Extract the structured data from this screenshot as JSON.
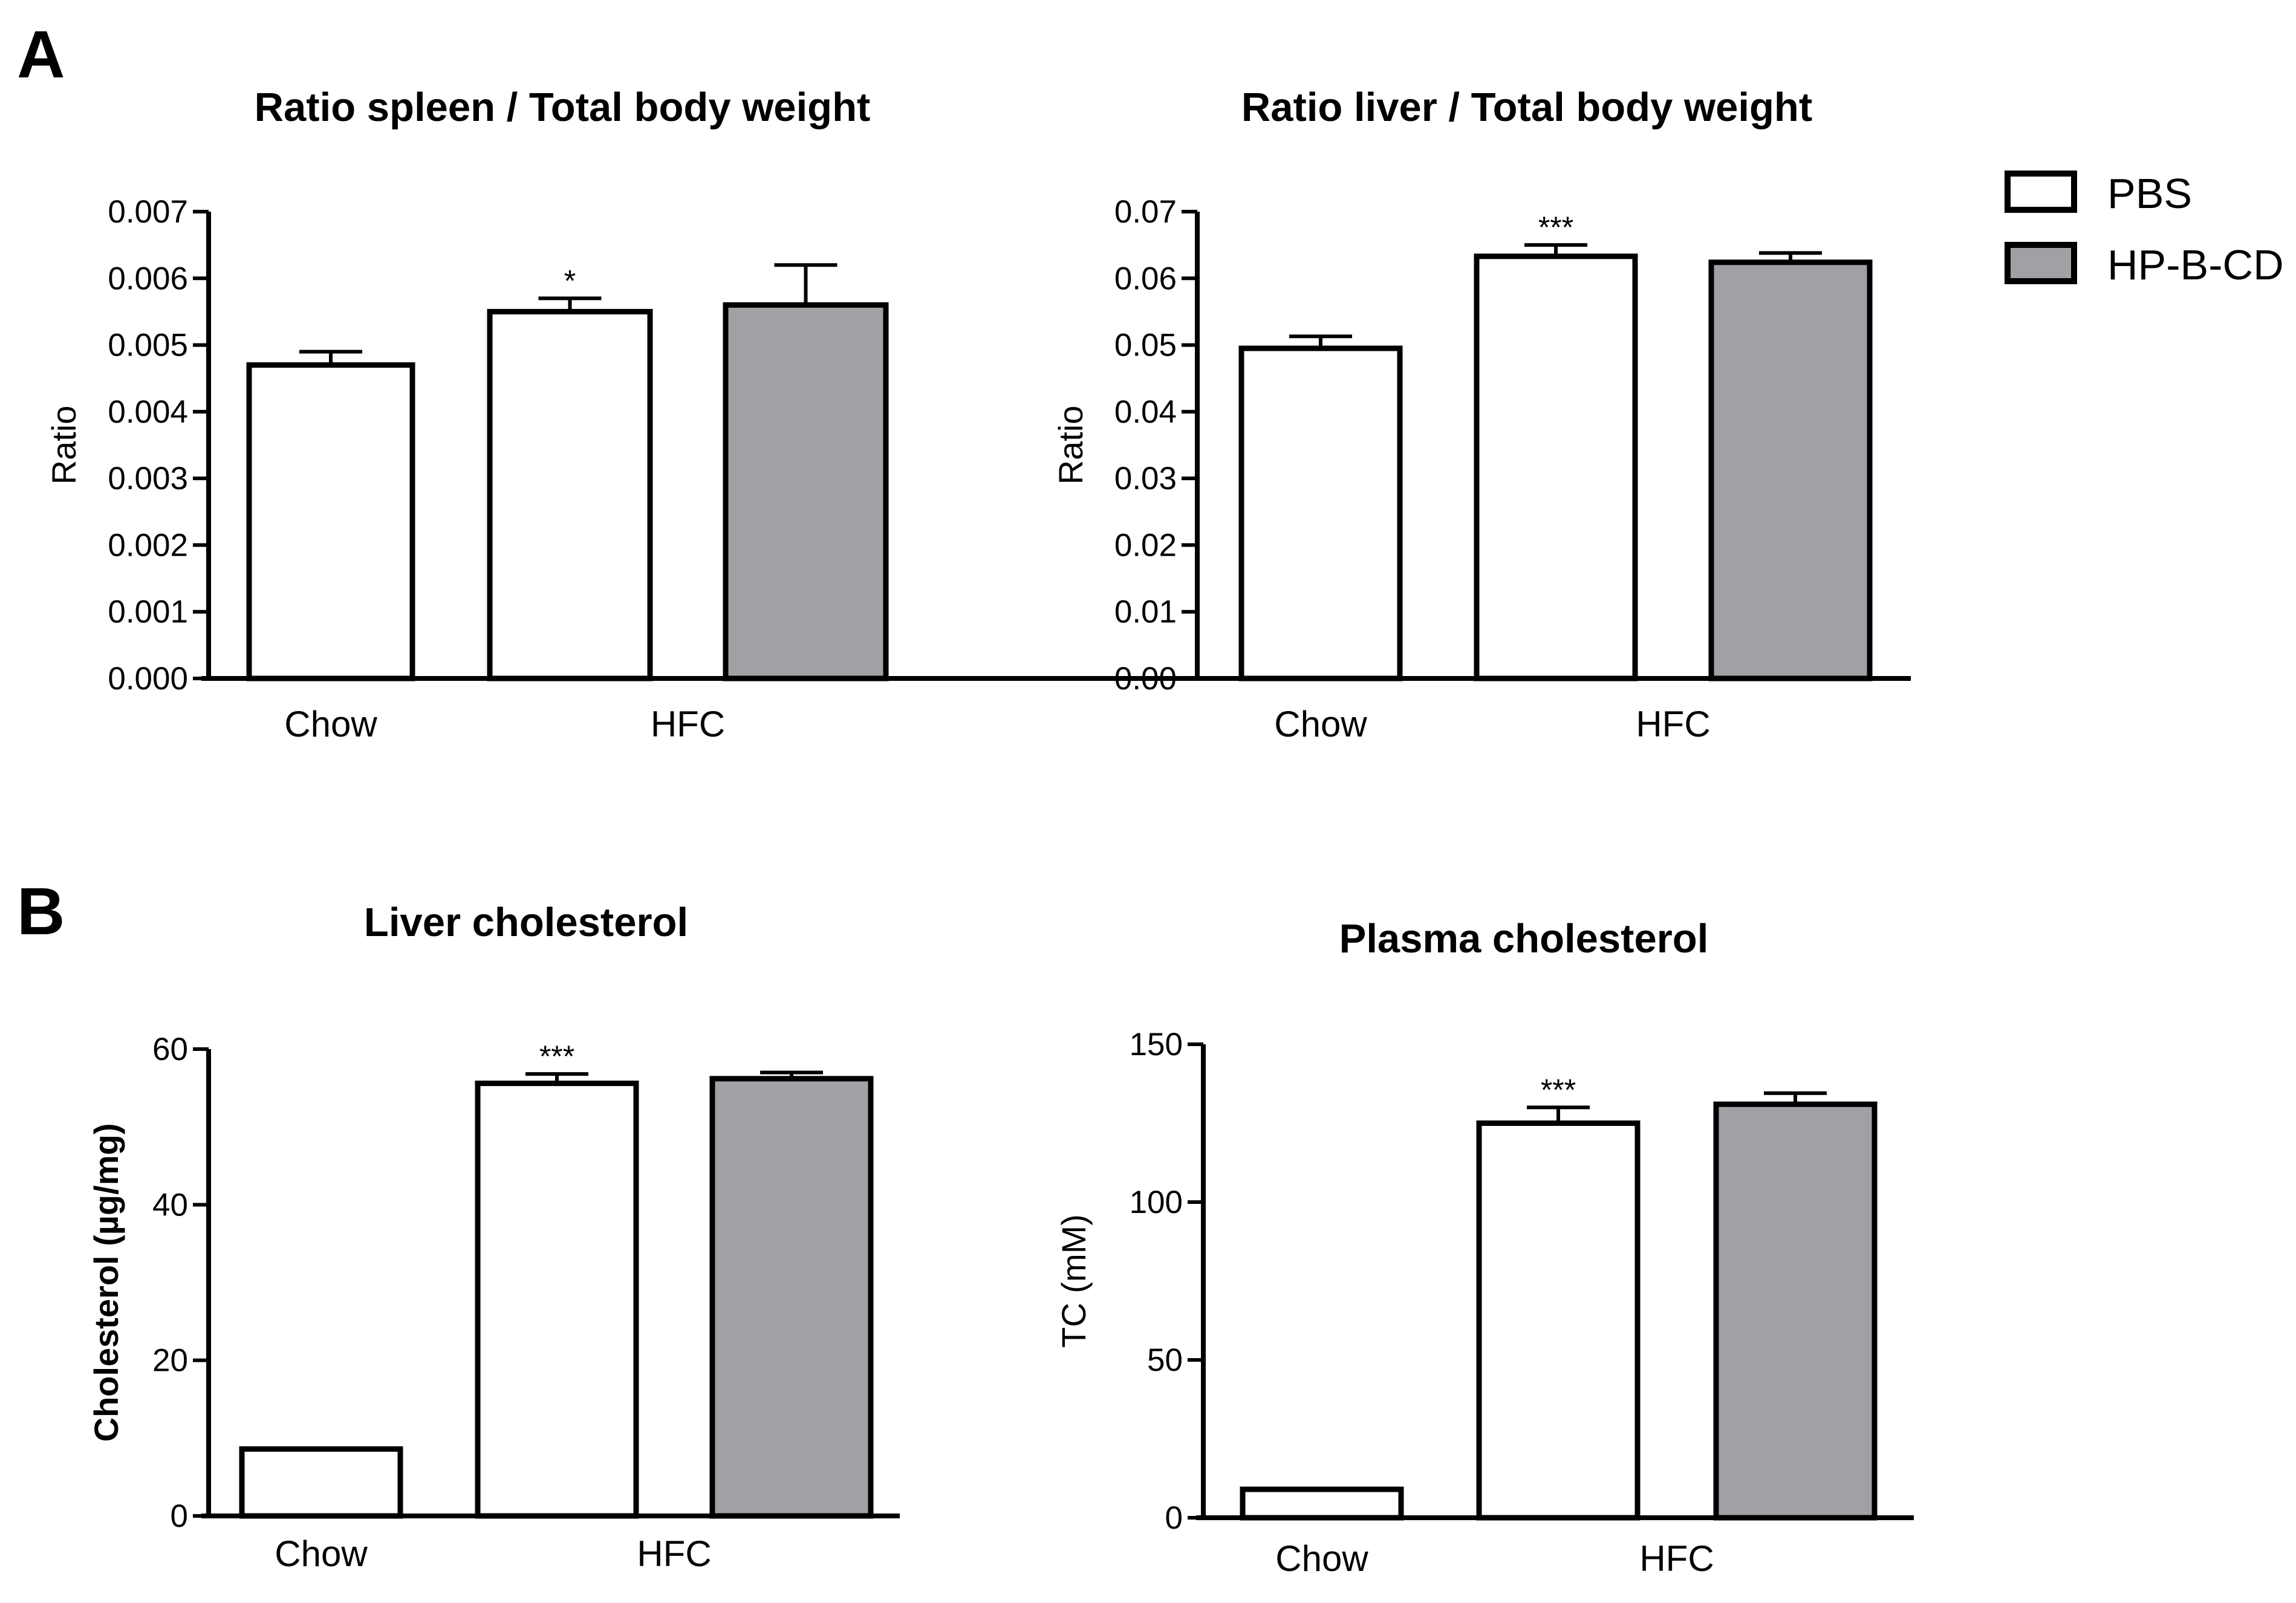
{
  "panels": {
    "a": "A",
    "b": "B"
  },
  "colors": {
    "pbs": "#ffffff",
    "hpbcd": "#a0a1a4",
    "stroke": "#000000"
  },
  "legend": [
    {
      "label": "PBS",
      "color": "#ffffff"
    },
    {
      "label": "HP-B-CD",
      "color": "#a0a1a4"
    }
  ],
  "chart_data": [
    {
      "type": "bar",
      "title": "Ratio spleen / Total body weight",
      "ylabel": "Ratio",
      "ylim": [
        0,
        0.007
      ],
      "yticks": [
        "0.000",
        "0.001",
        "0.002",
        "0.003",
        "0.004",
        "0.005",
        "0.006",
        "0.007"
      ],
      "categories": [
        "Chow",
        "HFC"
      ],
      "bars": [
        {
          "group": "Chow",
          "series": "PBS",
          "value": 0.0047,
          "error": 0.0002,
          "annotation": ""
        },
        {
          "group": "HFC",
          "series": "PBS",
          "value": 0.0055,
          "error": 0.0002,
          "annotation": "*"
        },
        {
          "group": "HFC",
          "series": "HP-B-CD",
          "value": 0.0056,
          "error": 0.0006,
          "annotation": ""
        }
      ]
    },
    {
      "type": "bar",
      "title": "Ratio liver / Total body weight",
      "ylabel": "Ratio",
      "ylim": [
        0,
        0.07
      ],
      "yticks": [
        "0.00",
        "0.01",
        "0.02",
        "0.03",
        "0.04",
        "0.05",
        "0.06",
        "0.07"
      ],
      "categories": [
        "Chow",
        "HFC"
      ],
      "bars": [
        {
          "group": "Chow",
          "series": "PBS",
          "value": 0.0495,
          "error": 0.0018,
          "annotation": ""
        },
        {
          "group": "HFC",
          "series": "PBS",
          "value": 0.0633,
          "error": 0.0017,
          "annotation": "***"
        },
        {
          "group": "HFC",
          "series": "HP-B-CD",
          "value": 0.0624,
          "error": 0.0014,
          "annotation": ""
        }
      ]
    },
    {
      "type": "bar",
      "title": "Liver cholesterol",
      "ylabel": "Cholesterol (µg/mg)",
      "ylabel_bold": true,
      "ylim": [
        0,
        60
      ],
      "yticks": [
        "0",
        "20",
        "40",
        "60"
      ],
      "categories": [
        "Chow",
        "HFC"
      ],
      "bars": [
        {
          "group": "Chow",
          "series": "PBS",
          "value": 8.6,
          "error": 0,
          "annotation": ""
        },
        {
          "group": "HFC",
          "series": "PBS",
          "value": 55.6,
          "error": 1.2,
          "annotation": "***"
        },
        {
          "group": "HFC",
          "series": "HP-B-CD",
          "value": 56.2,
          "error": 0.8,
          "annotation": ""
        }
      ]
    },
    {
      "type": "bar",
      "title": "Plasma cholesterol",
      "ylabel": "TC (mM)",
      "ylim": [
        0,
        150
      ],
      "yticks": [
        "0",
        "50",
        "100",
        "150"
      ],
      "categories": [
        "Chow",
        "HFC"
      ],
      "bars": [
        {
          "group": "Chow",
          "series": "PBS",
          "value": 9,
          "error": 0,
          "annotation": ""
        },
        {
          "group": "HFC",
          "series": "PBS",
          "value": 125,
          "error": 5,
          "annotation": "***"
        },
        {
          "group": "HFC",
          "series": "HP-B-CD",
          "value": 131,
          "error": 3.5,
          "annotation": ""
        }
      ]
    }
  ]
}
